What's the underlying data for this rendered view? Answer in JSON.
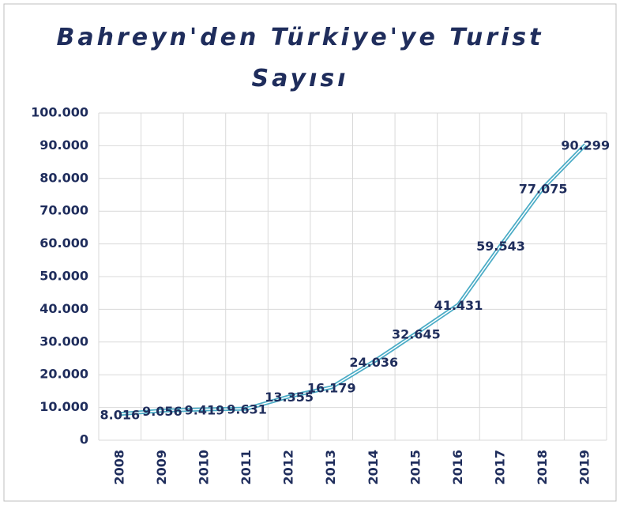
{
  "chart_data": {
    "type": "line",
    "title": "Bahreyn'den Türkiye'ye Turist Sayısı",
    "categories": [
      "2008",
      "2009",
      "2010",
      "2011",
      "2012",
      "2013",
      "2014",
      "2015",
      "2016",
      "2017",
      "2018",
      "2019"
    ],
    "series": [
      {
        "color": "#4bacc6",
        "values": [
          8016,
          9056,
          9419,
          9631,
          13355,
          16179,
          24036,
          32645,
          41431,
          59543,
          77075,
          90299
        ],
        "value_labels": [
          "8.016",
          "9.056",
          "9.419",
          "9.631",
          "13.355",
          "16.179",
          "24.036",
          "32.645",
          "41.431",
          "59.543",
          "77.075",
          "90.299"
        ]
      }
    ],
    "ylim": [
      0,
      100000
    ],
    "yticks": [
      0,
      {
        "value": 10000,
        "label": "10.000"
      },
      {
        "value": 20000,
        "label": "20.000"
      },
      {
        "value": 30000,
        "label": "30.000"
      },
      {
        "value": 40000,
        "label": "40.000"
      },
      {
        "value": 50000,
        "label": "50.000"
      },
      {
        "value": 60000,
        "label": "60.000"
      },
      {
        "value": 70000,
        "label": "70.000"
      },
      {
        "value": 80000,
        "label": "80.000"
      },
      {
        "value": 90000,
        "label": "90.000"
      },
      {
        "value": 100000,
        "label": "100.000"
      }
    ],
    "grid": true
  }
}
